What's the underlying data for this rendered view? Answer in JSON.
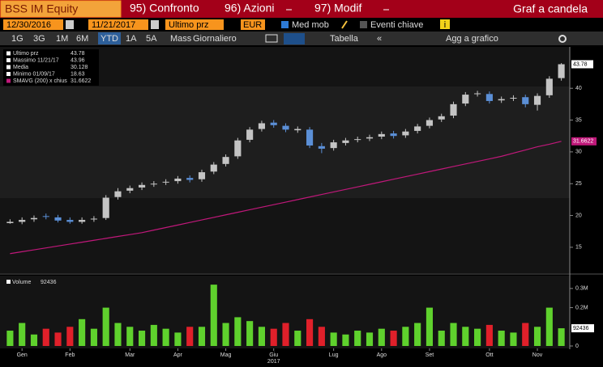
{
  "header": {
    "ticker": "BSS IM Equity",
    "menu": [
      "95) Confronto",
      "96) Azioni",
      "97) Modif"
    ],
    "view": "Graf a candela"
  },
  "controls": {
    "start_date": "12/30/2016",
    "end_date": "11/21/2017",
    "field": "Ultimo prz",
    "currency": "EUR",
    "moving_avg": "Med mob",
    "key_events": "Eventi chiave",
    "info": "i"
  },
  "periods": {
    "options": [
      "1G",
      "3G",
      "1M",
      "6M",
      "YTD",
      "1A",
      "5A",
      "Mass"
    ],
    "selected": 4,
    "frequency": "Giornaliero",
    "table": "Tabella",
    "add": "Agg a grafico"
  },
  "legend": [
    {
      "label": "Ultimo prz",
      "value": "43.78"
    },
    {
      "label": "Massimo 11/21/17",
      "value": "43.96"
    },
    {
      "label": "Media",
      "value": "30.128"
    },
    {
      "label": "Minimo 01/09/17",
      "value": "18.63"
    },
    {
      "label": "SMAVG (200) x chius",
      "value": "31.6622"
    }
  ],
  "chart_data": [
    {
      "type": "candlestick",
      "year": "2017",
      "categories": [
        null,
        "Gen",
        null,
        null,
        null,
        "Feb",
        null,
        null,
        null,
        null,
        "Mar",
        null,
        null,
        null,
        "Apr",
        null,
        null,
        null,
        "Mag",
        null,
        null,
        null,
        "Giu",
        null,
        null,
        null,
        null,
        "Lug",
        null,
        null,
        null,
        "Ago",
        null,
        null,
        null,
        "Set",
        null,
        null,
        null,
        null,
        "Ott",
        null,
        null,
        null,
        "Nov",
        null,
        null
      ],
      "open": [
        18.8,
        19.0,
        19.4,
        19.9,
        19.7,
        19.3,
        19.0,
        19.4,
        19.6,
        22.9,
        23.9,
        24.4,
        24.9,
        25.2,
        25.4,
        25.9,
        25.7,
        26.9,
        28.1,
        29.3,
        31.9,
        33.6,
        34.6,
        34.1,
        33.4,
        33.5,
        30.9,
        30.6,
        31.4,
        31.9,
        32.1,
        32.4,
        32.9,
        32.6,
        33.3,
        34.1,
        35.1,
        35.7,
        37.6,
        39.1,
        39.1,
        38.1,
        38.4,
        38.6,
        37.4,
        38.9,
        41.6
      ],
      "high": [
        19.4,
        19.7,
        20.0,
        20.3,
        20.1,
        19.7,
        19.7,
        19.9,
        23.2,
        24.3,
        24.7,
        25.2,
        25.4,
        25.7,
        26.2,
        26.3,
        27.2,
        28.4,
        29.6,
        32.2,
        33.9,
        34.9,
        35.0,
        34.5,
        34.0,
        33.9,
        31.4,
        31.9,
        32.2,
        32.4,
        32.7,
        33.2,
        33.3,
        33.6,
        34.4,
        35.4,
        36.0,
        37.9,
        39.4,
        39.6,
        39.5,
        38.7,
        38.9,
        39.0,
        39.2,
        41.9,
        43.96
      ],
      "low": [
        18.7,
        18.63,
        19.0,
        19.4,
        18.9,
        18.7,
        18.7,
        19.0,
        19.3,
        22.5,
        23.5,
        24.0,
        24.5,
        24.8,
        25.0,
        25.2,
        25.3,
        26.5,
        27.7,
        28.9,
        31.5,
        33.2,
        33.8,
        33.1,
        33.0,
        30.6,
        29.8,
        30.2,
        31.0,
        31.5,
        31.7,
        32.0,
        32.1,
        32.2,
        32.9,
        33.7,
        34.7,
        35.3,
        37.2,
        38.7,
        37.6,
        37.7,
        38.0,
        37.0,
        36.5,
        38.5,
        41.2
      ],
      "close": [
        19.0,
        19.3,
        19.6,
        19.8,
        19.2,
        19.0,
        19.3,
        19.5,
        22.8,
        23.8,
        24.3,
        24.8,
        25.0,
        25.3,
        25.8,
        25.6,
        26.8,
        28.0,
        29.2,
        31.8,
        33.5,
        34.5,
        34.2,
        33.5,
        33.6,
        31.0,
        30.5,
        31.5,
        31.8,
        32.0,
        32.3,
        32.8,
        32.5,
        33.2,
        34.0,
        35.0,
        35.6,
        37.5,
        39.0,
        39.2,
        38.0,
        38.3,
        38.5,
        37.5,
        38.8,
        41.5,
        43.78
      ],
      "close_label": "43.78",
      "color_up": "#c4c4c4",
      "color_down": "#5b8fd6",
      "ma": {
        "color": "#c0187a",
        "label": "31.6622",
        "values": [
          14.0,
          14.3,
          14.6,
          14.9,
          15.2,
          15.5,
          15.8,
          16.1,
          16.4,
          16.7,
          17.0,
          17.3,
          17.7,
          18.1,
          18.5,
          18.9,
          19.3,
          19.7,
          20.1,
          20.5,
          20.9,
          21.3,
          21.7,
          22.1,
          22.5,
          22.9,
          23.3,
          23.7,
          24.1,
          24.5,
          24.9,
          25.3,
          25.7,
          26.1,
          26.5,
          26.9,
          27.3,
          27.7,
          28.1,
          28.5,
          28.9,
          29.3,
          29.8,
          30.3,
          30.8,
          31.2,
          31.66
        ]
      },
      "ylim": [
        11.3,
        46
      ],
      "yticks": [
        15,
        20,
        25,
        30,
        35,
        40
      ]
    },
    {
      "type": "bar",
      "name": "Volume",
      "value_label": "92436",
      "values": [
        0.08,
        0.12,
        0.06,
        0.09,
        0.07,
        0.1,
        0.14,
        0.09,
        0.2,
        0.12,
        0.1,
        0.08,
        0.11,
        0.09,
        0.07,
        0.1,
        0.1,
        0.32,
        0.12,
        0.15,
        0.13,
        0.1,
        0.09,
        0.12,
        0.08,
        0.14,
        0.1,
        0.07,
        0.06,
        0.08,
        0.07,
        0.09,
        0.08,
        0.1,
        0.12,
        0.2,
        0.08,
        0.12,
        0.1,
        0.09,
        0.11,
        0.08,
        0.07,
        0.12,
        0.1,
        0.2,
        0.092436
      ],
      "ylim": [
        0,
        0.35
      ],
      "yticks": [
        {
          "value": 0,
          "label": "0"
        },
        {
          "value": 0.2,
          "label": "0.2M"
        },
        {
          "value": 0.3,
          "label": "0.3M"
        }
      ]
    }
  ]
}
